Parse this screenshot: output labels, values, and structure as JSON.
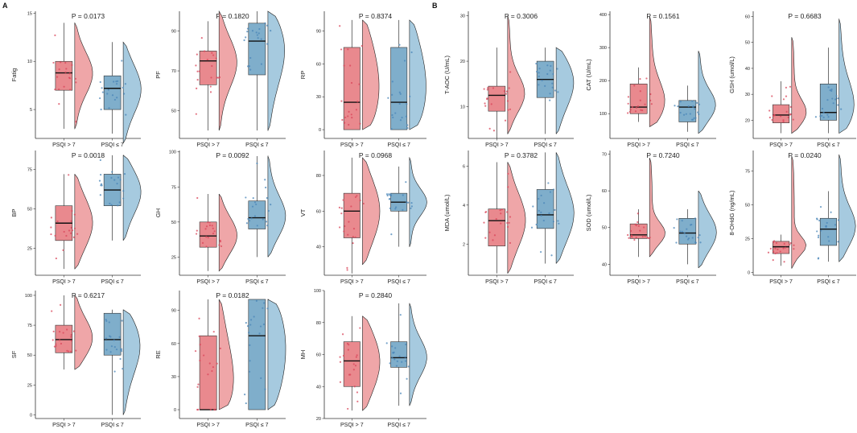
{
  "panel_labels": {
    "a": "A",
    "b": "B"
  },
  "colors": {
    "red": "#E9898E",
    "blue": "#7FAECB",
    "red_violin": "#EFA6A8",
    "blue_violin": "#A6CADF",
    "red_pt": "#D9455A",
    "blue_pt": "#4A86B8"
  },
  "chart_data": [
    {
      "type": "boxplot-raincloud",
      "title": "P = 0.0173",
      "ylabel": "Fatig",
      "categories": [
        "PSQI > 7",
        "PSQI ≤ 7"
      ],
      "ylim": [
        2,
        15.2
      ],
      "yticks": [
        5,
        10,
        15
      ],
      "box": [
        {
          "min": 3,
          "q1": 7,
          "median": 8.8,
          "q3": 10,
          "max": 14
        },
        {
          "min": 2.5,
          "q1": 5,
          "median": 7.2,
          "q3": 8.5,
          "max": 12
        }
      ],
      "violin_range": [
        [
          3,
          14
        ],
        [
          1.5,
          12
        ]
      ]
    },
    {
      "type": "boxplot-raincloud",
      "title": "P = 0.1820",
      "ylabel": "PF",
      "categories": [
        "PSQI > 7",
        "PSQI ≤ 7"
      ],
      "ylim": [
        36,
        100
      ],
      "yticks": [
        50,
        70,
        90
      ],
      "box": [
        {
          "min": 40,
          "q1": 63,
          "median": 75,
          "q3": 80,
          "max": 95
        },
        {
          "min": 40,
          "q1": 68,
          "median": 85,
          "q3": 94,
          "max": 100
        }
      ],
      "violin_range": [
        [
          40,
          100
        ],
        [
          40,
          100
        ]
      ]
    },
    {
      "type": "boxplot-raincloud",
      "title": "P = 0.8374",
      "ylabel": "RP",
      "categories": [
        "PSQI > 7",
        "PSQI ≤ 7"
      ],
      "ylim": [
        -8,
        108
      ],
      "yticks": [
        0,
        30,
        60,
        90
      ],
      "box": [
        {
          "min": 0,
          "q1": 0,
          "median": 25,
          "q3": 75,
          "max": 100
        },
        {
          "min": 0,
          "q1": 0,
          "median": 25,
          "q3": 75,
          "max": 100
        }
      ],
      "violin_range": [
        [
          0,
          100
        ],
        [
          0,
          100
        ]
      ]
    },
    {
      "type": "boxplot-raincloud",
      "title": "P = 0.3006",
      "ylabel": "T-AOC (U/mL)",
      "categories": [
        "PSQI > 7",
        "PSQI ≤ 7"
      ],
      "ylim": [
        3,
        31
      ],
      "yticks": [
        10,
        20,
        30
      ],
      "box": [
        {
          "min": 3,
          "q1": 9,
          "median": 12.5,
          "q3": 14.5,
          "max": 23
        },
        {
          "min": 4,
          "q1": 12,
          "median": 16,
          "q3": 20,
          "max": 23
        }
      ],
      "violin_range": [
        [
          4,
          30
        ],
        [
          4,
          23
        ]
      ]
    },
    {
      "type": "boxplot-raincloud",
      "title": "P = 0.1561",
      "ylabel": "CAT (U/mL)",
      "categories": [
        "PSQI > 7",
        "PSQI ≤ 7"
      ],
      "ylim": [
        25,
        410
      ],
      "yticks": [
        100,
        200,
        300,
        400
      ],
      "box": [
        {
          "min": 75,
          "q1": 100,
          "median": 120,
          "q3": 190,
          "max": 240
        },
        {
          "min": 45,
          "q1": 75,
          "median": 120,
          "q3": 140,
          "max": 185
        }
      ],
      "violin_range": [
        [
          60,
          395
        ],
        [
          40,
          290
        ]
      ]
    },
    {
      "type": "boxplot-raincloud",
      "title": "P = 0.6683",
      "ylabel": "GSH (umol/L)",
      "categories": [
        "PSQI > 7",
        "PSQI ≤ 7"
      ],
      "ylim": [
        13,
        62
      ],
      "yticks": [
        20,
        30,
        40,
        50,
        60
      ],
      "box": [
        {
          "min": 15,
          "q1": 19,
          "median": 22,
          "q3": 26,
          "max": 35
        },
        {
          "min": 15,
          "q1": 20,
          "median": 23,
          "q3": 34,
          "max": 48
        }
      ],
      "violin_range": [
        [
          15,
          52
        ],
        [
          15,
          59
        ]
      ]
    },
    {
      "type": "boxplot-raincloud",
      "title": "P = 0.0018",
      "ylabel": "BP",
      "categories": [
        "PSQI > 7",
        "PSQI ≤ 7"
      ],
      "ylim": [
        8,
        87
      ],
      "yticks": [
        25,
        50,
        75
      ],
      "box": [
        {
          "min": 12,
          "q1": 30,
          "median": 41,
          "q3": 52,
          "max": 72
        },
        {
          "min": 30,
          "q1": 52,
          "median": 62,
          "q3": 72,
          "max": 84
        }
      ],
      "violin_range": [
        [
          12,
          72
        ],
        [
          30,
          84
        ]
      ]
    },
    {
      "type": "boxplot-raincloud",
      "title": "P = 0.0092",
      "ylabel": "GH",
      "categories": [
        "PSQI > 7",
        "PSQI ≤ 7"
      ],
      "ylim": [
        12,
        101
      ],
      "yticks": [
        25,
        50,
        75,
        100
      ],
      "box": [
        {
          "min": 15,
          "q1": 32,
          "median": 40,
          "q3": 50,
          "max": 70
        },
        {
          "min": 25,
          "q1": 45,
          "median": 53,
          "q3": 65,
          "max": 97
        }
      ],
      "violin_range": [
        [
          15,
          70
        ],
        [
          25,
          97
        ]
      ]
    },
    {
      "type": "boxplot-raincloud",
      "title": "P = 0.0968",
      "ylabel": "VT",
      "categories": [
        "PSQI > 7",
        "PSQI ≤ 7"
      ],
      "ylim": [
        24,
        94
      ],
      "yticks": [
        40,
        60,
        80
      ],
      "box": [
        {
          "min": 25,
          "q1": 45,
          "median": 60,
          "q3": 70,
          "max": 90
        },
        {
          "min": 40,
          "q1": 60,
          "median": 65,
          "q3": 70,
          "max": 85
        }
      ],
      "violin_range": [
        [
          30,
          90
        ],
        [
          40,
          90
        ]
      ]
    },
    {
      "type": "boxplot-raincloud",
      "title": "P = 0.3782",
      "ylabel": "MDA (umol/L)",
      "categories": [
        "PSQI > 7",
        "PSQI ≤ 7"
      ],
      "ylim": [
        0.4,
        6.8
      ],
      "yticks": [
        2,
        4,
        6
      ],
      "box": [
        {
          "min": 0.5,
          "q1": 1.9,
          "median": 3.2,
          "q3": 3.8,
          "max": 6.2
        },
        {
          "min": 1,
          "q1": 2.8,
          "median": 3.5,
          "q3": 4.8,
          "max": 6.7
        }
      ],
      "violin_range": [
        [
          0.5,
          6.2
        ],
        [
          1,
          6.7
        ]
      ]
    },
    {
      "type": "boxplot-raincloud",
      "title": "P = 0.7240",
      "ylabel": "SOD (umol/L)",
      "categories": [
        "PSQI > 7",
        "PSQI ≤ 7"
      ],
      "ylim": [
        37,
        71
      ],
      "yticks": [
        40,
        50,
        60,
        70
      ],
      "box": [
        {
          "min": 42,
          "q1": 47,
          "median": 48,
          "q3": 51,
          "max": 55
        },
        {
          "min": 40,
          "q1": 45.5,
          "median": 48.5,
          "q3": 52.5,
          "max": 55
        }
      ],
      "violin_range": [
        [
          42,
          69
        ],
        [
          39,
          60
        ]
      ]
    },
    {
      "type": "boxplot-raincloud",
      "title": "P = 0.0240",
      "ylabel": "8-OHdG (ng/mL)",
      "categories": [
        "PSQI > 7",
        "PSQI ≤ 7"
      ],
      "ylim": [
        -2,
        90
      ],
      "yticks": [
        0,
        25,
        50,
        75
      ],
      "box": [
        {
          "min": 5,
          "q1": 14,
          "median": 19,
          "q3": 23,
          "max": 28
        },
        {
          "min": 8,
          "q1": 20,
          "median": 32,
          "q3": 40,
          "max": 60
        }
      ],
      "violin_range": [
        [
          3,
          86
        ],
        [
          8,
          87
        ]
      ]
    },
    {
      "type": "boxplot-raincloud",
      "title": "P = 0.6217",
      "ylabel": "SF",
      "categories": [
        "PSQI > 7",
        "PSQI ≤ 7"
      ],
      "ylim": [
        -3,
        104
      ],
      "yticks": [
        0,
        25,
        50,
        75,
        100
      ],
      "box": [
        {
          "min": 38,
          "q1": 52,
          "median": 63,
          "q3": 75,
          "max": 100
        },
        {
          "min": 0,
          "q1": 50,
          "median": 63,
          "q3": 85,
          "max": 88
        }
      ],
      "violin_range": [
        [
          38,
          100
        ],
        [
          0,
          88
        ]
      ]
    },
    {
      "type": "boxplot-raincloud",
      "title": "P = 0.0182",
      "ylabel": "RE",
      "categories": [
        "PSQI > 7",
        "PSQI ≤ 7"
      ],
      "ylim": [
        -8,
        108
      ],
      "yticks": [
        0,
        30,
        60,
        90
      ],
      "box": [
        {
          "min": 0,
          "q1": 0,
          "median": 0,
          "q3": 67,
          "max": 100
        },
        {
          "min": 0,
          "q1": 0,
          "median": 67,
          "q3": 100,
          "max": 100
        }
      ],
      "violin_range": [
        [
          0,
          100
        ],
        [
          0,
          100
        ]
      ]
    },
    {
      "type": "boxplot-raincloud",
      "title": "P = 0.2840",
      "ylabel": "MH",
      "categories": [
        "PSQI > 7",
        "PSQI ≤ 7"
      ],
      "ylim": [
        20,
        100
      ],
      "yticks": [
        20,
        40,
        60,
        80,
        100
      ],
      "box": [
        {
          "min": 25,
          "q1": 40,
          "median": 56,
          "q3": 68,
          "max": 84
        },
        {
          "min": 28,
          "q1": 52,
          "median": 58,
          "q3": 68,
          "max": 92
        }
      ],
      "violin_range": [
        [
          25,
          84
        ],
        [
          28,
          92
        ]
      ]
    }
  ]
}
